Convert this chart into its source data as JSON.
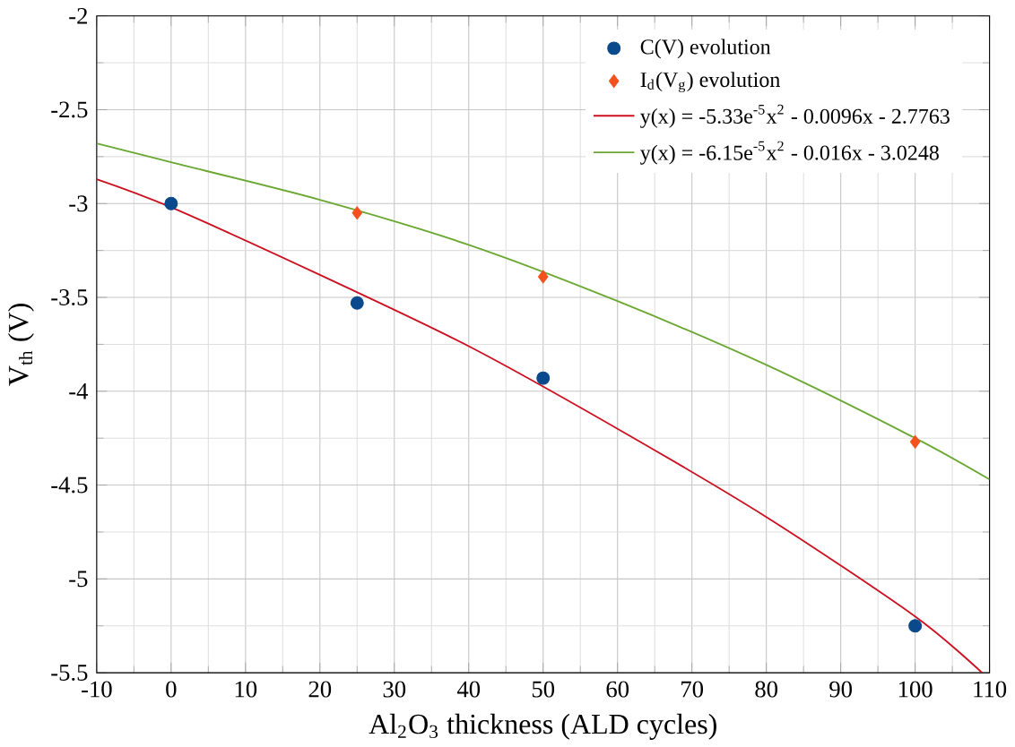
{
  "chart_data": {
    "type": "scatter",
    "xlabel": "Al$_{2}$O$_{3}$ thickness (ALD cycles)",
    "ylabel": "V$_{th}$ (V)",
    "xlim": [
      -10,
      110
    ],
    "xticks": [
      -10,
      0,
      10,
      20,
      30,
      40,
      50,
      60,
      70,
      80,
      90,
      100,
      110
    ],
    "ylim": [
      -5.5,
      -2
    ],
    "yticks": [
      -5.5,
      -5,
      -4.5,
      -4,
      -3.5,
      -3,
      -2.5,
      -2
    ],
    "grid": true,
    "legend": "top right",
    "series": [
      {
        "name": "C(V) evolution",
        "marker": "circle",
        "color": "#0a4a8c",
        "x": [
          0,
          25,
          50,
          100
        ],
        "values": [
          -3.0,
          -3.53,
          -3.93,
          -5.25
        ]
      },
      {
        "name": "I$_{d}$(V$_{g}$) evolution",
        "marker": "diamond",
        "color": "#f4511e",
        "x": [
          25,
          50,
          100
        ],
        "values": [
          -3.05,
          -3.39,
          -4.27
        ]
      },
      {
        "name": "y(x) = -5.33e$^{-5}$x$^{2}$ - 0.0096x - 2.7763",
        "type": "line",
        "marker": "none",
        "color": "#cc1020",
        "x": [
          -10,
          0,
          20,
          40,
          60,
          80,
          100,
          109
        ],
        "values": [
          -2.87,
          -3.02,
          -3.38,
          -3.76,
          -4.2,
          -4.67,
          -5.2,
          -5.5
        ]
      },
      {
        "name": "y(x) = -6.15e$^{-5}$x$^{2}$ - 0.016x - 3.0248",
        "type": "line",
        "marker": "none",
        "color": "#6aa832",
        "x": [
          -10,
          0,
          20,
          40,
          60,
          80,
          100,
          110
        ],
        "values": [
          -2.68,
          -2.78,
          -2.98,
          -3.22,
          -3.52,
          -3.86,
          -4.25,
          -4.47
        ]
      }
    ]
  }
}
